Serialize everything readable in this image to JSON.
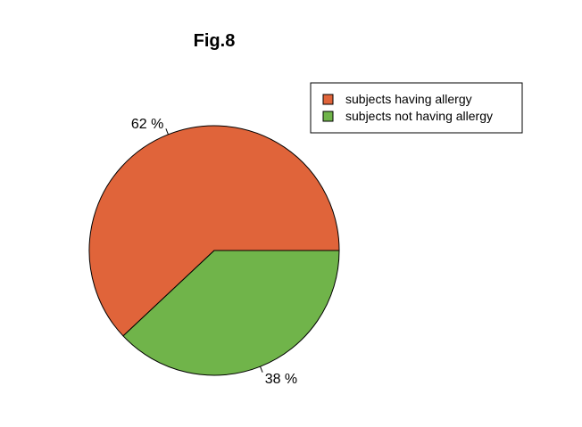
{
  "chart_data": {
    "type": "pie",
    "title": "Fig.8",
    "slices": [
      {
        "label": "subjects having allergy",
        "value": 62,
        "display": "62 %",
        "color": "#E0643A"
      },
      {
        "label": "subjects not having allergy",
        "value": 38,
        "display": "38 %",
        "color": "#70B44A"
      }
    ],
    "legend_position": "top-right",
    "start_angle_deg": 0,
    "direction": "counterclockwise"
  }
}
